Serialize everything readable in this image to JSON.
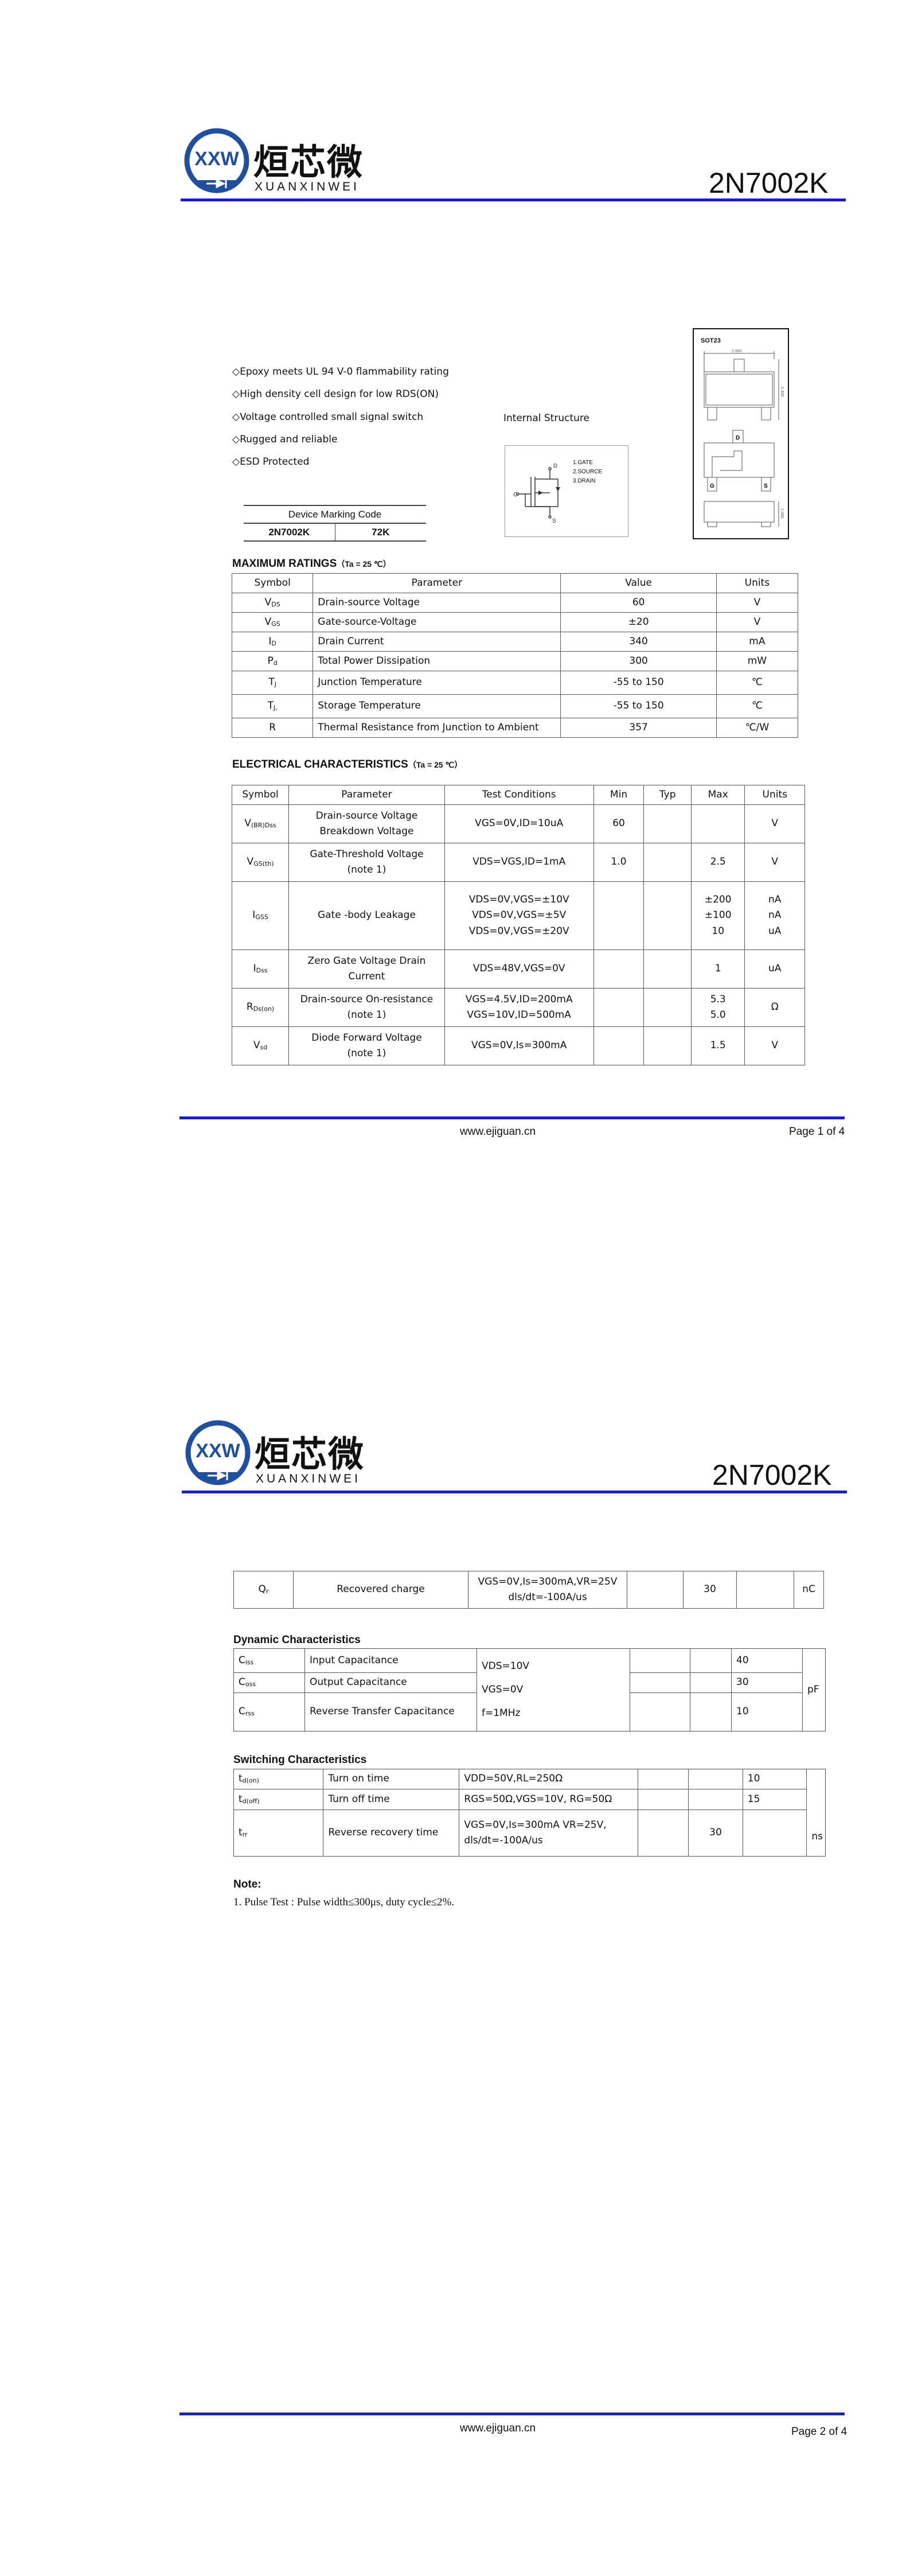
{
  "brand": {
    "logo_mark": "XXW",
    "name_cn": "烜芯微",
    "name_en": "XUANXINWEI",
    "accent": "#1a1fc8",
    "logo_blue": "#1f4f9e"
  },
  "part_number": "2N7002K",
  "features": [
    "◇Epoxy meets UL 94 V-0 flammability rating",
    "◇High density cell design for low RDS(ON)",
    "◇Voltage controlled small signal switch",
    "◇Rugged and reliable",
    "◇ESD Protected"
  ],
  "internal_structure": {
    "label": "Internal Structure",
    "pins": [
      "1.GATE",
      "2.SOURCE",
      "3.DRAIN"
    ],
    "terminals": [
      "D",
      "G",
      "S"
    ]
  },
  "package": {
    "name": "SOT23",
    "dims": [
      "2.900",
      "2.400",
      "1.080"
    ],
    "pins": [
      "D",
      "G",
      "S"
    ]
  },
  "marking": {
    "header": "Device Marking Code",
    "device": "2N7002K",
    "code": "72K"
  },
  "max_ratings": {
    "title": "MAXIMUM RATINGS",
    "cond": "（Ta = 25 ℃）",
    "headers": [
      "Symbol",
      "Parameter",
      "Value",
      "Units"
    ],
    "rows": [
      {
        "sym": "V",
        "sub": "DS",
        "param": "Drain-source Voltage",
        "value": "60",
        "unit": "V"
      },
      {
        "sym": "V",
        "sub": "GS",
        "param": "Gate-source-Voltage",
        "value": "±20",
        "unit": "V"
      },
      {
        "sym": "I",
        "sub": "D",
        "param": "Drain Current",
        "value": "340",
        "unit": "mA"
      },
      {
        "sym": "P",
        "sub": "d",
        "param": "Total Power Dissipation",
        "value": "300",
        "unit": "mW"
      },
      {
        "sym": "T",
        "sub": "J",
        "param": "Junction Temperature",
        "value": "-55 to 150",
        "unit": "℃"
      },
      {
        "sym": "T",
        "sub": "J,",
        "param": "Storage Temperature",
        "value": "-55 to 150",
        "unit": "℃"
      },
      {
        "sym": "R",
        "sub": "",
        "param": "Thermal Resistance from Junction to Ambient",
        "value": "357",
        "unit": "℃/W"
      }
    ]
  },
  "electrical": {
    "title": "ELECTRICAL CHARACTERISTICS",
    "cond": "（Ta = 25 ℃）",
    "headers": [
      "Symbol",
      "Parameter",
      "Test Conditions",
      "Min",
      "Typ",
      "Max",
      "Units"
    ],
    "rows": [
      {
        "sym": "V",
        "sub": "(BR)Dss",
        "param": [
          "Drain-source Voltage",
          "Breakdown Voltage"
        ],
        "cond": [
          "VGS=0V,ID=10uA"
        ],
        "min": "60",
        "typ": "",
        "max": [
          ""
        ],
        "unit": [
          "V"
        ]
      },
      {
        "sym": "V",
        "sub": "GS(th)",
        "param": [
          "Gate-Threshold Voltage",
          "(note 1)"
        ],
        "cond": [
          "VDS=VGS,ID=1mA"
        ],
        "min": "1.0",
        "typ": "",
        "max": [
          "2.5"
        ],
        "unit": [
          "V"
        ]
      },
      {
        "sym": "I",
        "sub": "GSS",
        "param": [
          "Gate -body Leakage"
        ],
        "cond": [
          "VDS=0V,VGS=±10V",
          "VDS=0V,VGS=±5V",
          "VDS=0V,VGS=±20V"
        ],
        "min": "",
        "typ": "",
        "max": [
          "±200",
          "±100",
          "10"
        ],
        "unit": [
          "nA",
          "nA",
          "uA"
        ]
      },
      {
        "sym": "I",
        "sub": "Dss",
        "param": [
          "Zero Gate Voltage Drain",
          "Current"
        ],
        "cond": [
          "VDS=48V,VGS=0V"
        ],
        "min": "",
        "typ": "",
        "max": [
          "1"
        ],
        "unit": [
          "uA"
        ]
      },
      {
        "sym": "R",
        "sub": "Ds(on)",
        "param": [
          "Drain-source On-resistance",
          "(note 1)"
        ],
        "cond": [
          "VGS=4.5V,ID=200mA",
          "VGS=10V,ID=500mA"
        ],
        "min": "",
        "typ": "",
        "max": [
          "5.3",
          "5.0"
        ],
        "unit": [
          "Ω"
        ]
      },
      {
        "sym": "V",
        "sub": "sd",
        "param": [
          "Diode Forward Voltage",
          "(note 1)"
        ],
        "cond": [
          "VGS=0V,Is=300mA"
        ],
        "min": "",
        "typ": "",
        "max": [
          "1.5"
        ],
        "unit": [
          "V"
        ]
      }
    ]
  },
  "recovered": {
    "sym": "Q",
    "sub": "r",
    "param": "Recovered charge",
    "cond": [
      "VGS=0V,Is=300mA,VR=25V",
      "dls/dt=-100A/us"
    ],
    "min": "",
    "typ": "30",
    "max": "",
    "unit": "nC"
  },
  "dynamic": {
    "title": "Dynamic Characteristics",
    "cond": [
      "VDS=10V",
      "VGS=0V",
      "f=1MHz"
    ],
    "unit": "pF",
    "rows": [
      {
        "sym": "C",
        "sub": "iss",
        "param": "Input Capacitance",
        "max": "40"
      },
      {
        "sym": "C",
        "sub": "oss",
        "param": "Output Capacitance",
        "max": "30"
      },
      {
        "sym": "C",
        "sub": "rss",
        "param": "Reverse Transfer Capacitance",
        "max": "10"
      }
    ]
  },
  "switching": {
    "title": "Switching Characteristics",
    "unit": "ns",
    "rows": [
      {
        "sym": "t",
        "sub": "d(on)",
        "param": "Turn on time",
        "cond": "VDD=50V,RL=250Ω",
        "typ": "",
        "max": "10"
      },
      {
        "sym": "t",
        "sub": "d(off)",
        "param": "Turn off time",
        "cond": "RGS=50Ω,VGS=10V, RG=50Ω",
        "typ": "",
        "max": "15"
      },
      {
        "sym": "t",
        "sub": "rr",
        "param": "Reverse recovery time",
        "cond": "VGS=0V,Is=300mA VR=25V, dls/dt=-100A/us",
        "typ": "30",
        "max": ""
      }
    ]
  },
  "note": {
    "title": "Note:",
    "text": "1. Pulse Test : Pulse width≤300μs, duty cycle≤2%."
  },
  "footer": {
    "site": "www.ejiguan.cn",
    "pages": [
      "Page 1 of 4",
      "Page 2 of 4"
    ]
  }
}
